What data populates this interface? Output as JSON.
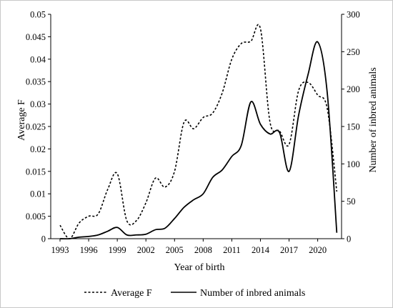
{
  "chart_data": {
    "type": "line",
    "xlabel": "Year of birth",
    "ylabel_left": "Average F",
    "ylabel_right": "Number of inbred animals",
    "ylim_left": [
      0,
      0.05
    ],
    "ylim_right": [
      0,
      300
    ],
    "x_ticks": [
      "1993",
      "1996",
      "1999",
      "2002",
      "2005",
      "2008",
      "2011",
      "2014",
      "2017",
      "2020"
    ],
    "y_ticks_left": [
      "0",
      "0.005",
      "0.01",
      "0.015",
      "0.02",
      "0.025",
      "0.03",
      "0.035",
      "0.04",
      "0.045",
      "0.05"
    ],
    "y_ticks_right": [
      "0",
      "50",
      "100",
      "150",
      "200",
      "250",
      "300"
    ],
    "grid": false,
    "legend_position": "bottom",
    "series": [
      {
        "name": "Average F",
        "axis": "left",
        "style": "dashed",
        "color": "#000000",
        "x": [
          1993,
          1994,
          1995,
          1996,
          1997,
          1998,
          1999,
          2000,
          2001,
          2002,
          2003,
          2004,
          2005,
          2006,
          2007,
          2008,
          2009,
          2010,
          2011,
          2012,
          2013,
          2014,
          2015,
          2016,
          2017,
          2018,
          2019,
          2020,
          2021,
          2022
        ],
        "values": [
          0.003,
          0.0,
          0.0035,
          0.005,
          0.0055,
          0.011,
          0.0145,
          0.004,
          0.004,
          0.008,
          0.0135,
          0.0115,
          0.015,
          0.026,
          0.0245,
          0.027,
          0.028,
          0.0325,
          0.04,
          0.0435,
          0.044,
          0.0468,
          0.026,
          0.024,
          0.021,
          0.033,
          0.0348,
          0.032,
          0.029,
          0.0105
        ]
      },
      {
        "name": "Number of inbred animals",
        "axis": "right",
        "style": "solid",
        "color": "#000000",
        "x": [
          1993,
          1994,
          1995,
          1996,
          1997,
          1998,
          1999,
          2000,
          2001,
          2002,
          2003,
          2004,
          2005,
          2006,
          2007,
          2008,
          2009,
          2010,
          2011,
          2012,
          2013,
          2014,
          2015,
          2016,
          2017,
          2018,
          2019,
          2020,
          2021,
          2022
        ],
        "values": [
          0,
          0,
          2,
          3,
          5,
          10,
          15,
          5,
          5,
          6,
          12,
          14,
          27,
          42,
          52,
          60,
          82,
          92,
          110,
          125,
          183,
          153,
          140,
          142,
          90,
          165,
          220,
          263,
          195,
          8
        ]
      }
    ]
  }
}
